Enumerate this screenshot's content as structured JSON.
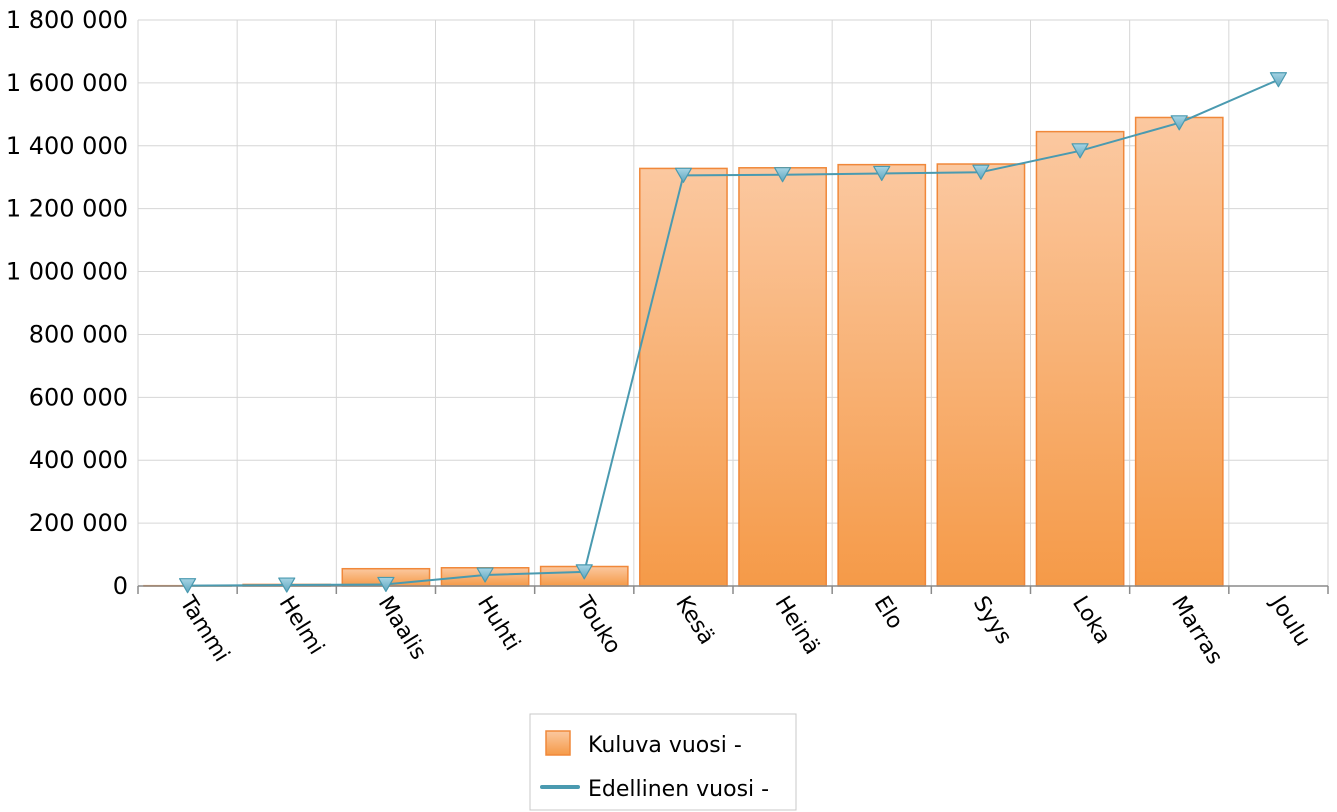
{
  "chart_data": {
    "type": "bar",
    "categories": [
      "Tammi",
      "Helmi",
      "Maalis",
      "Huhti",
      "Touko",
      "Kesä",
      "Heinä",
      "Elo",
      "Syys",
      "Loka",
      "Marras",
      "Joulu"
    ],
    "ylim": [
      0,
      1800000
    ],
    "ytick_values": [
      0,
      200000,
      400000,
      600000,
      800000,
      1000000,
      1200000,
      1400000,
      1600000,
      1800000
    ],
    "ytick_labels": [
      "0",
      "200 000",
      "400 000",
      "600 000",
      "800 000",
      "1 000 000",
      "1 200 000",
      "1 400 000",
      "1 600 000",
      "1 800 000"
    ],
    "grid": true,
    "legend_position": "bottom-center",
    "series": [
      {
        "name": "Kuluva vuosi -",
        "kind": "bar",
        "color": "#f7a35c",
        "values": [
          1000,
          5000,
          55000,
          58000,
          62000,
          1328000,
          1330000,
          1340000,
          1342000,
          1445000,
          1490000,
          null
        ]
      },
      {
        "name": "Edellinen vuosi -",
        "kind": "line",
        "color": "#4a9ab0",
        "marker": "triangle-down",
        "values": [
          1000,
          3000,
          5000,
          35000,
          45000,
          1306000,
          1308000,
          1312000,
          1316000,
          1384000,
          1473000,
          1610000
        ]
      }
    ]
  }
}
